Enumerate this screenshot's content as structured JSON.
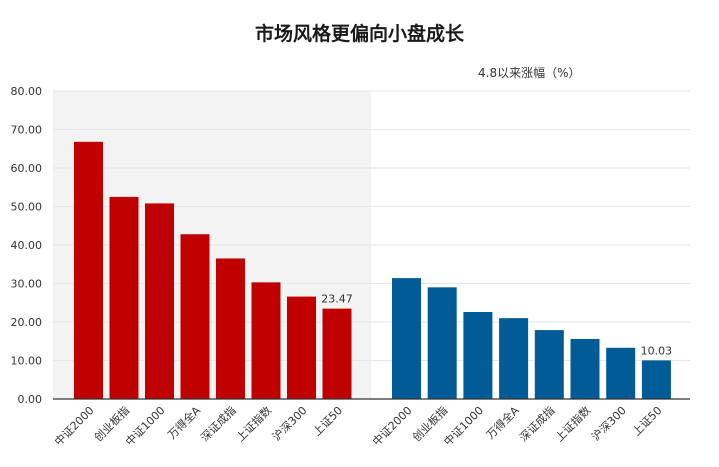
{
  "title": "市场风格更偏向小盘成长",
  "subtitle": "4.8以来涨幅（%）",
  "colors": {
    "left_series": "#c00000",
    "right_series": "#005b96",
    "shaded_band": "#f3f3f3",
    "gridline": "#e6e6e6",
    "axis": "#333333",
    "text": "#333333"
  },
  "chart_data": {
    "type": "bar",
    "ylim": [
      0,
      80
    ],
    "yticks": [
      0,
      10,
      20,
      30,
      40,
      50,
      60,
      70,
      80
    ],
    "ytick_labels": [
      "0.00",
      "10.00",
      "20.00",
      "30.00",
      "40.00",
      "50.00",
      "60.00",
      "70.00",
      "80.00"
    ],
    "grid": true,
    "groups": [
      {
        "categories": [
          "中证2000",
          "创业板指",
          "中证1000",
          "万得全A",
          "深证成指",
          "上证指数",
          "沪深300",
          "上证50"
        ],
        "values": [
          66.8,
          52.5,
          50.8,
          42.8,
          36.5,
          30.3,
          26.6,
          23.47
        ],
        "data_labels": [
          null,
          null,
          null,
          null,
          null,
          null,
          null,
          "23.47"
        ],
        "color": "#c00000",
        "shaded": true
      },
      {
        "categories": [
          "中证2000",
          "创业板指",
          "中证1000",
          "万得全A",
          "深证成指",
          "上证指数",
          "沪深300",
          "上证50"
        ],
        "values": [
          31.4,
          29.0,
          22.6,
          21.0,
          17.9,
          15.6,
          13.3,
          10.03
        ],
        "data_labels": [
          null,
          null,
          null,
          null,
          null,
          null,
          null,
          "10.03"
        ],
        "color": "#005b96",
        "shaded": false
      }
    ]
  }
}
